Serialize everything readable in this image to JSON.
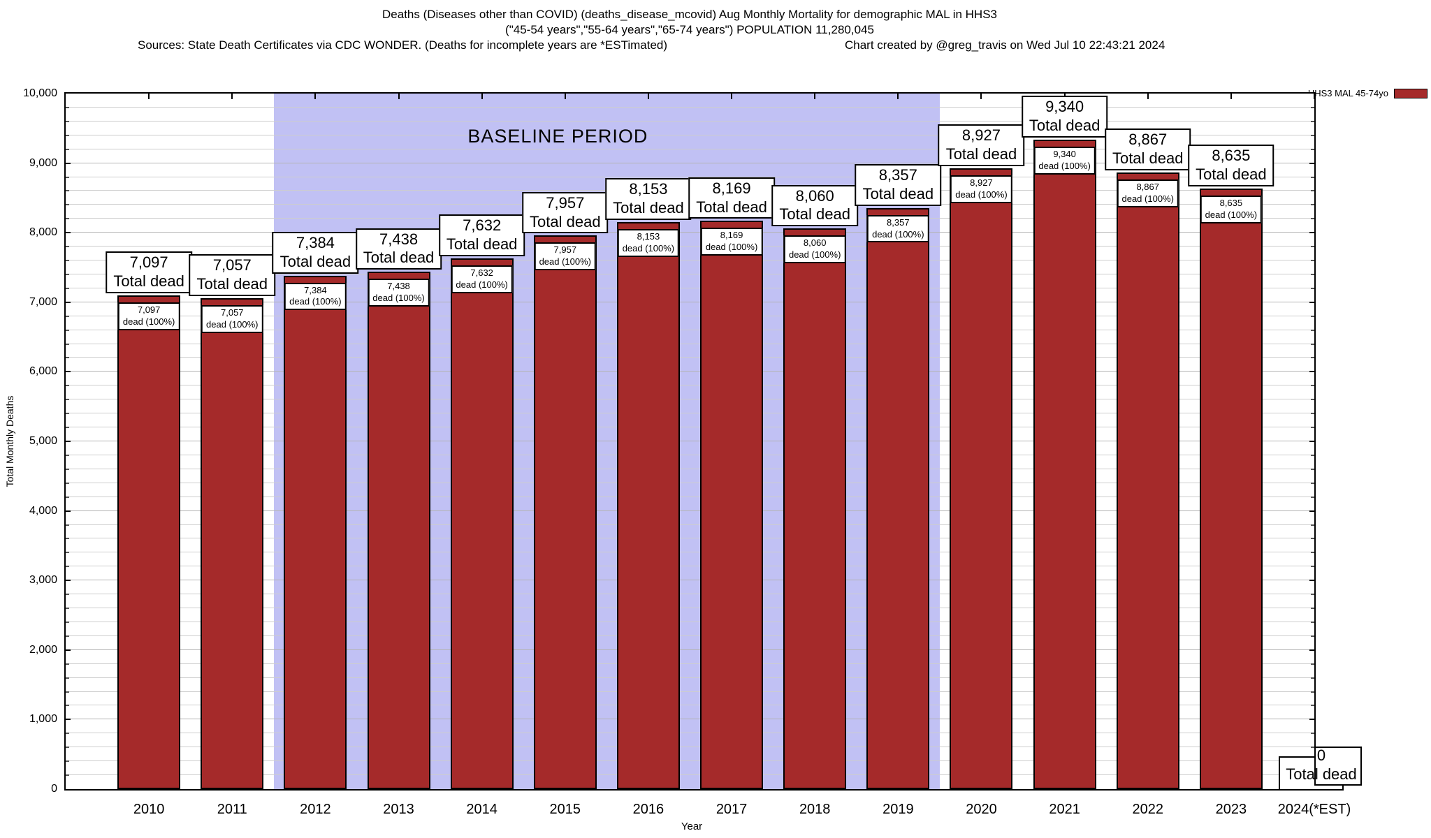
{
  "title": {
    "line1": "Deaths (Diseases other than COVID) (deaths_disease_mcovid) Aug Monthly Mortality for demographic MAL in HHS3",
    "line2": "(\"45-54 years\",\"55-64 years\",\"65-74 years\") POPULATION 11,280,045",
    "sources": "Sources: State Death Certificates via CDC WONDER. (Deaths for incomplete years are *ESTimated)",
    "credit": "Chart created by @greg_travis on Wed Jul 10 22:43:21 2024"
  },
  "legend": {
    "label": "HHS3 MAL 45-74yo",
    "color": "#a52a2a"
  },
  "axes": {
    "ylabel": "Total Monthly Deaths",
    "xlabel": "Year",
    "y_tick_labels": [
      "0",
      "1,000",
      "2,000",
      "3,000",
      "4,000",
      "5,000",
      "6,000",
      "7,000",
      "8,000",
      "9,000",
      "10,000"
    ],
    "y_tick_step": 1000,
    "grid_minor_step": 200
  },
  "baseline": {
    "label": "BASELINE PERIOD",
    "from_category": "2012",
    "to_category": "2019",
    "color": "#c1c1f4"
  },
  "chart_data": {
    "type": "bar",
    "title": "Deaths (Diseases other than COVID) Aug Monthly Mortality for demographic MAL in HHS3",
    "series_name": "HHS3 MAL 45-74yo",
    "bar_color": "#a52a2a",
    "categories": [
      "2010",
      "2011",
      "2012",
      "2013",
      "2014",
      "2015",
      "2016",
      "2017",
      "2018",
      "2019",
      "2020",
      "2021",
      "2022",
      "2023",
      "2024(*EST)"
    ],
    "values": [
      7097,
      7057,
      7384,
      7438,
      7632,
      7957,
      8153,
      8169,
      8060,
      8357,
      8927,
      9340,
      8867,
      8635,
      0
    ],
    "value_labels": [
      "7,097",
      "7,057",
      "7,384",
      "7,438",
      "7,632",
      "7,957",
      "8,153",
      "8,169",
      "8,060",
      "8,357",
      "8,927",
      "9,340",
      "8,867",
      "8,635",
      "0"
    ],
    "bar_top_label_suffix": "Total dead",
    "bar_inner_label_suffix": "dead (100%)",
    "xlabel": "Year",
    "ylabel": "Total Monthly Deaths",
    "ylim": [
      0,
      10000
    ],
    "grid": "horizontal minor lines every 200, major every 1000",
    "legend_position": "top-right outside plot",
    "baseline_region": {
      "label": "BASELINE PERIOD",
      "categories": [
        "2012",
        "2013",
        "2014",
        "2015",
        "2016",
        "2017",
        "2018",
        "2019"
      ]
    }
  }
}
